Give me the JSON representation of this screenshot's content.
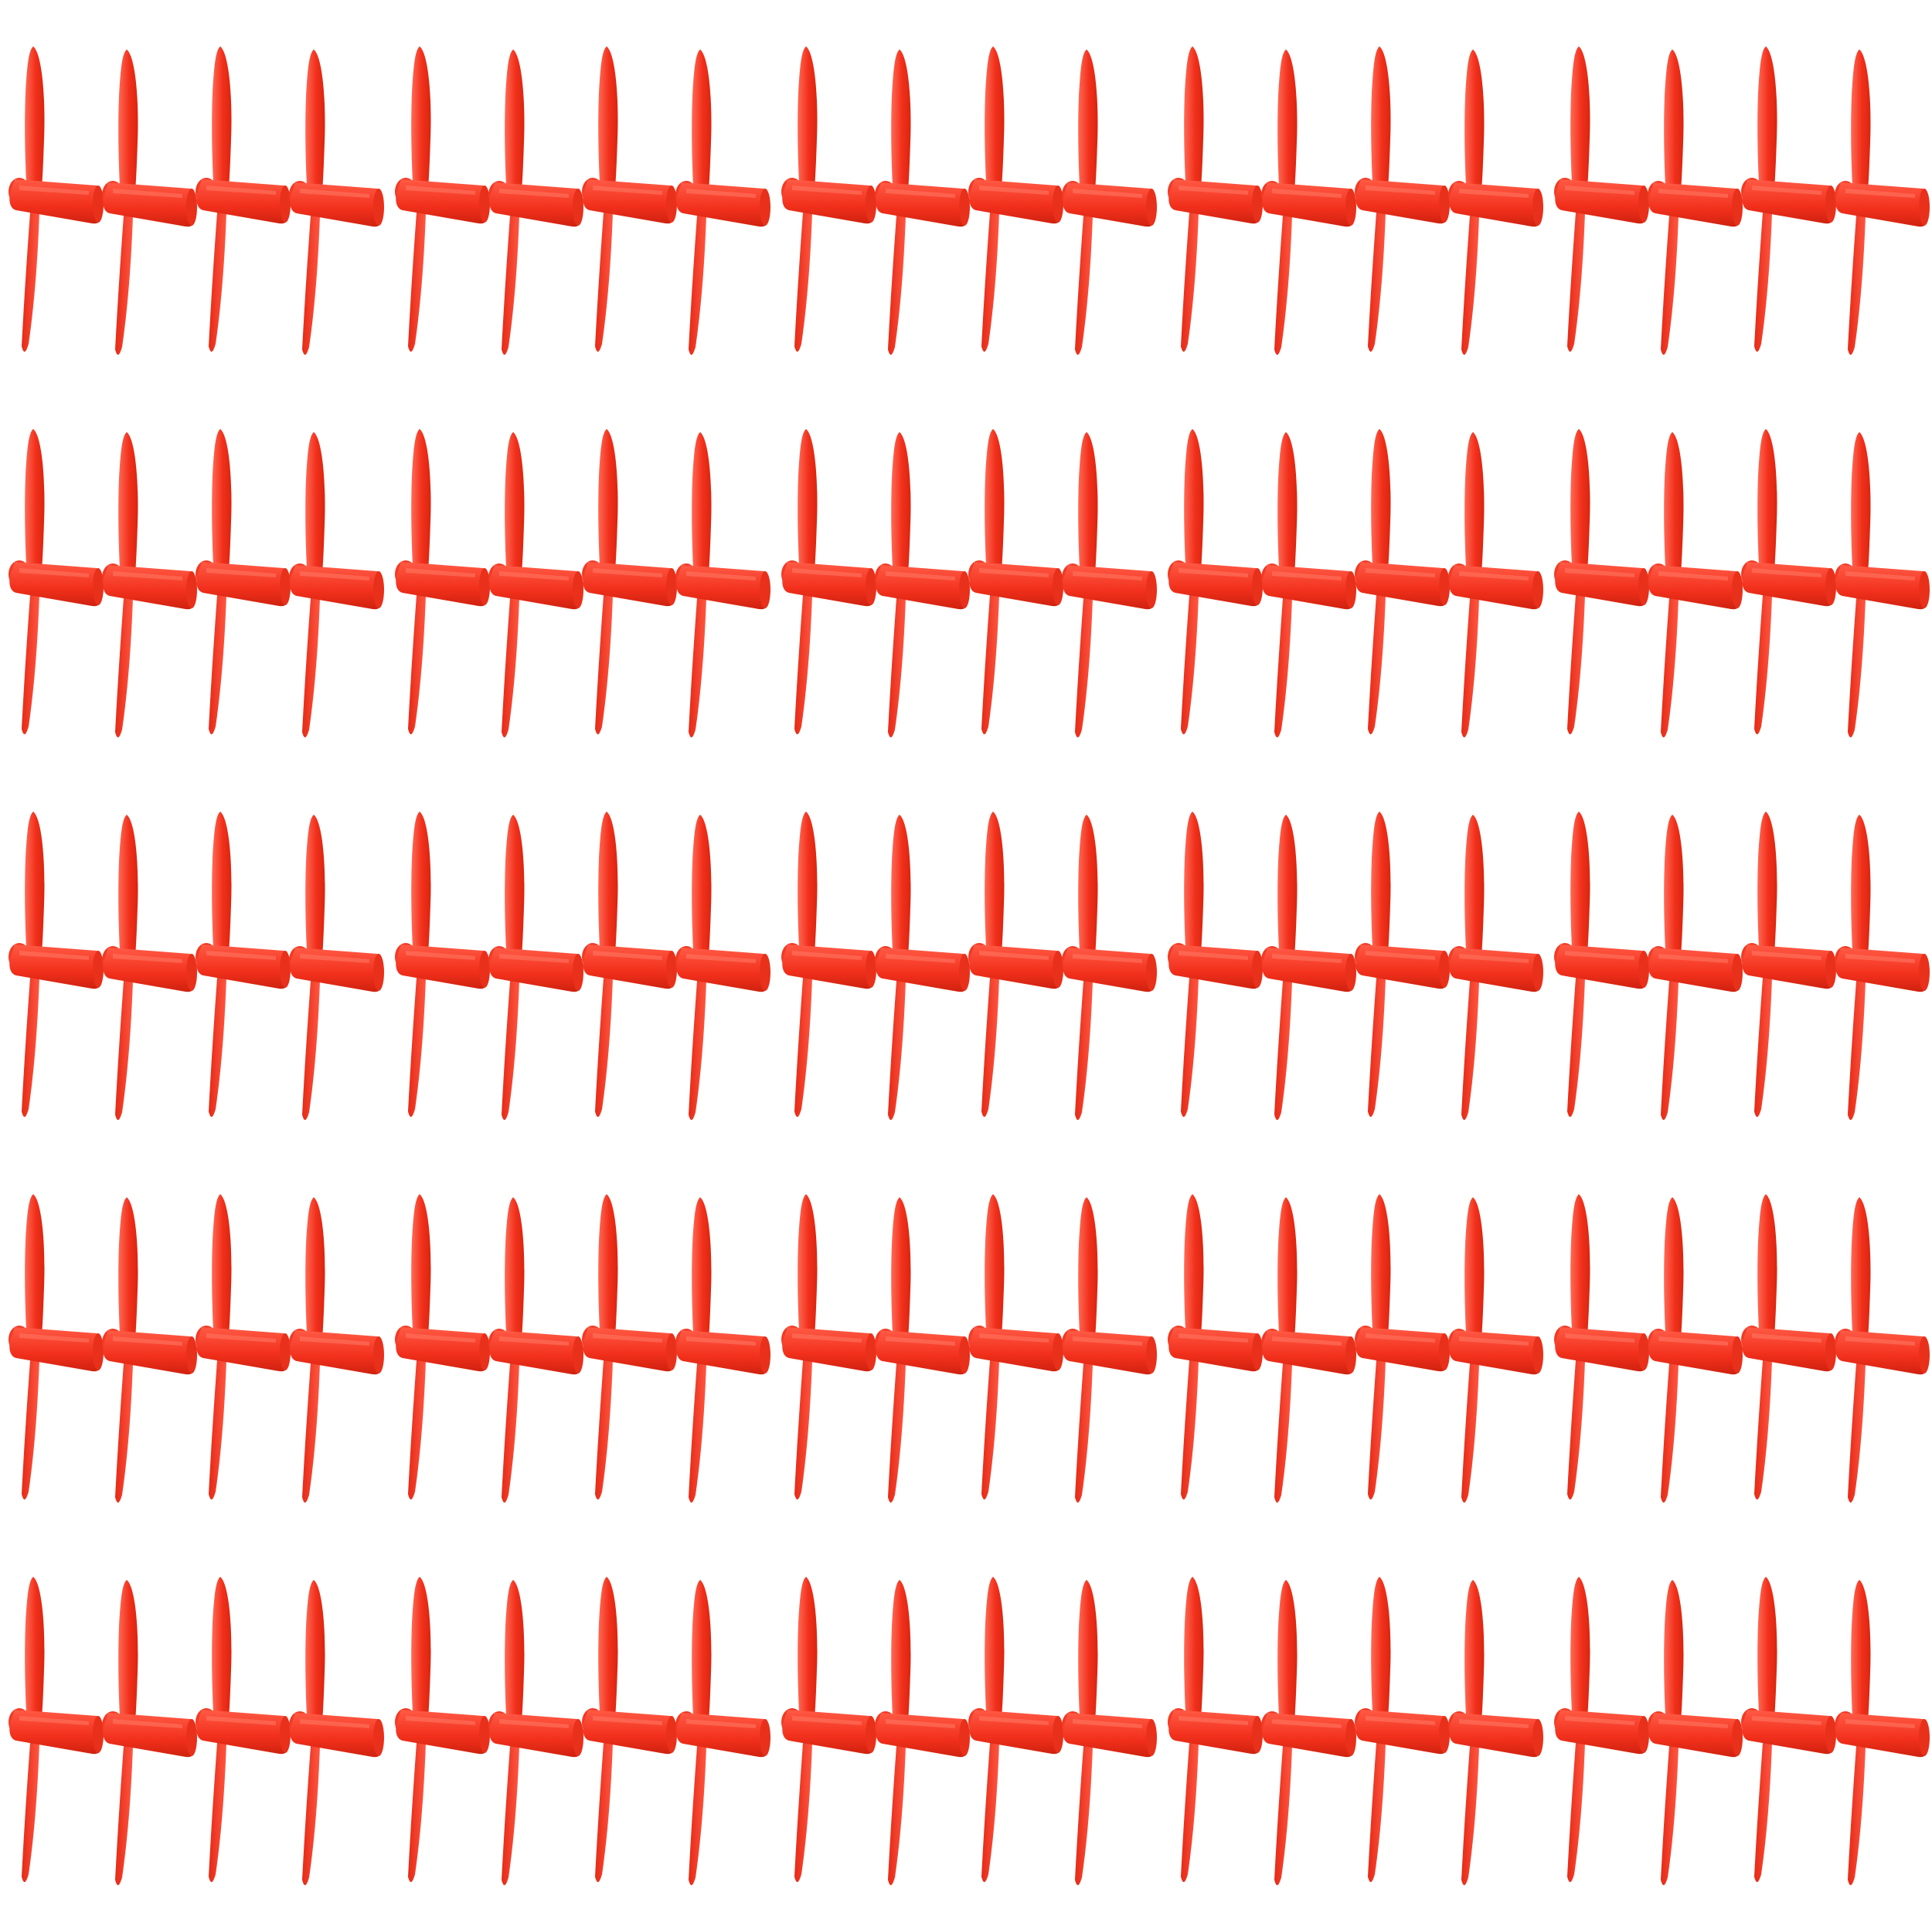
{
  "photo": {
    "subject": "red propellers",
    "background_color": "#ffffff",
    "colors": {
      "propeller_main": "#f2301c",
      "propeller_light": "#ff5a45",
      "propeller_dark": "#c9200f"
    },
    "grid": {
      "rows": 5,
      "groups_per_row": 5,
      "propellers_per_group": 4,
      "total_propellers": 100
    }
  }
}
